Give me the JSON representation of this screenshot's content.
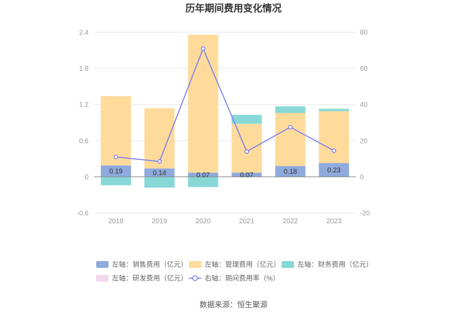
{
  "chart_data": {
    "type": "bar",
    "title": "历年期间费用变化情况",
    "categories": [
      "2018",
      "2019",
      "2020",
      "2021",
      "2022",
      "2023"
    ],
    "left_axis": {
      "ticks": [
        "2.4",
        "1.8",
        "1.2",
        "0.6",
        "0",
        "-0.6"
      ],
      "ylim": [
        -0.6,
        2.4
      ]
    },
    "right_axis": {
      "ticks": [
        "80",
        "60",
        "40",
        "20",
        "0",
        "-20"
      ],
      "ylim": [
        -20,
        80
      ]
    },
    "series": [
      {
        "name": "左轴：销售费用（亿元）",
        "axis": "left",
        "stack": true,
        "color": "#8faadc",
        "values": [
          0.19,
          0.14,
          0.07,
          0.07,
          0.18,
          0.23
        ],
        "labels": [
          "0.19",
          "0.14",
          "0.07",
          "0.07",
          "0.18",
          "0.23"
        ]
      },
      {
        "name": "左轴：管理费用（亿元）",
        "axis": "left",
        "stack": true,
        "color": "#fedb9b",
        "values": [
          1.15,
          1.0,
          2.29,
          0.81,
          0.88,
          0.86
        ]
      },
      {
        "name": "左轴：财务费用（亿元）",
        "axis": "left",
        "stack": true,
        "color": "#88d8d8",
        "values": [
          -0.14,
          -0.18,
          -0.17,
          0.15,
          0.11,
          0.04
        ]
      },
      {
        "name": "左轴：研发费用（亿元）",
        "axis": "left",
        "stack": true,
        "color": "#f3d7ea",
        "values": [
          0,
          0,
          0,
          0,
          0,
          0
        ]
      },
      {
        "name": "右轴：期间费用率（%）",
        "axis": "right",
        "type": "line",
        "color": "#7b7ff0",
        "values": [
          11.0,
          8.5,
          71.0,
          14.0,
          27.5,
          14.5
        ]
      }
    ]
  },
  "source": "数据来源：恒生聚源"
}
